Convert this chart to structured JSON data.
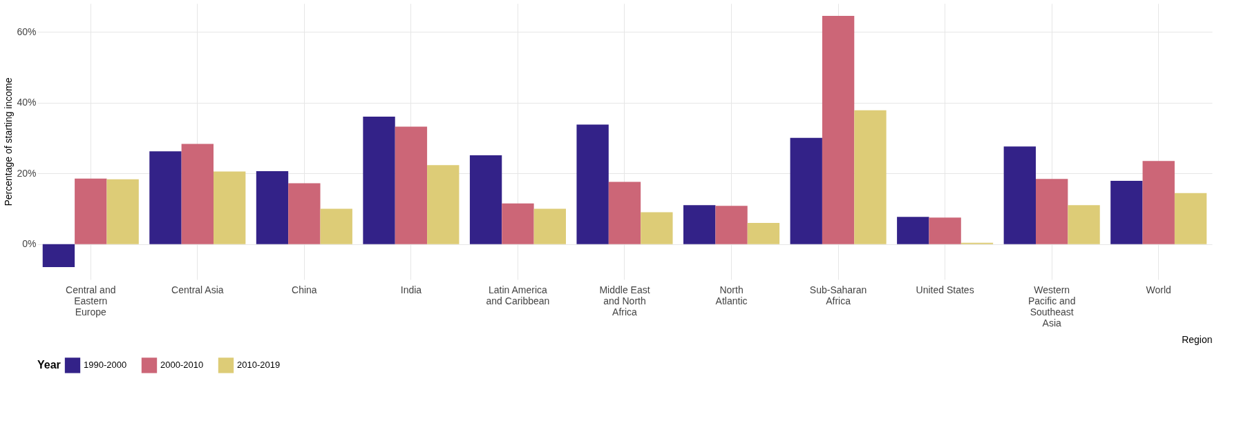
{
  "chart_data": {
    "type": "bar",
    "xlabel": "Region",
    "ylabel": "Percentage of starting income",
    "legend_title": "Year",
    "categories": [
      "Central and Eastern Europe",
      "Central Asia",
      "China",
      "India",
      "Latin America and Caribbean",
      "Middle East and North Africa",
      "North Atlantic",
      "Sub-Saharan Africa",
      "United States",
      "Western Pacific and Southeast Asia",
      "World"
    ],
    "series": [
      {
        "name": "1990-2000",
        "color": "#332288",
        "values": [
          -6.5,
          26.2,
          20.6,
          36.0,
          25.1,
          33.8,
          11.0,
          30.0,
          7.7,
          27.6,
          17.9
        ]
      },
      {
        "name": "2000-2010",
        "color": "#cc6677",
        "values": [
          18.5,
          28.3,
          17.2,
          33.2,
          11.5,
          17.6,
          10.8,
          64.5,
          7.5,
          18.4,
          23.5
        ]
      },
      {
        "name": "2010-2019",
        "color": "#ddcc77",
        "values": [
          18.3,
          20.5,
          10.0,
          22.3,
          10.0,
          9.0,
          6.0,
          37.8,
          0.4,
          11.0,
          14.4
        ]
      }
    ],
    "ylim": [
      -10,
      68
    ],
    "yticks": [
      {
        "value": 0,
        "label": "0%"
      },
      {
        "value": 20,
        "label": "20%"
      },
      {
        "value": 40,
        "label": "40%"
      },
      {
        "value": 60,
        "label": "60%"
      }
    ],
    "grid": true,
    "legend": "bottom"
  }
}
